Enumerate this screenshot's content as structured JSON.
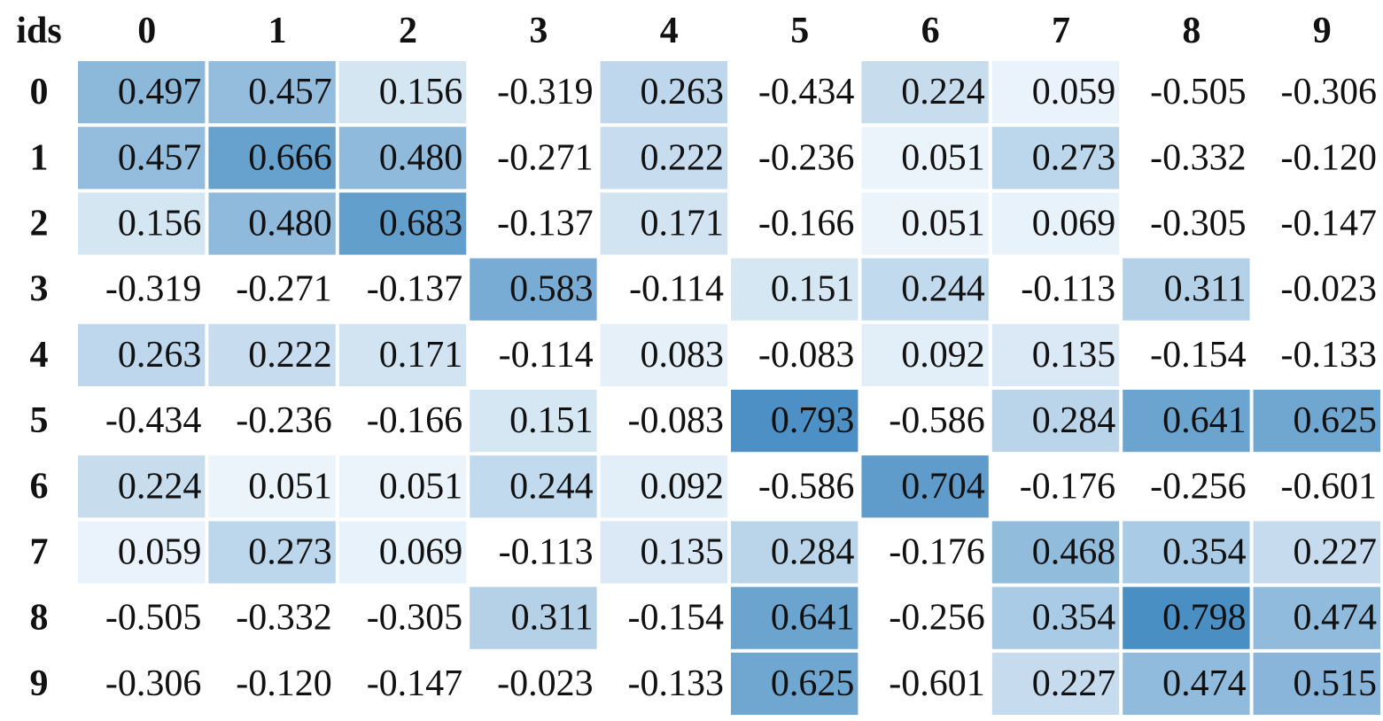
{
  "chart_data": {
    "type": "heatmap",
    "corner_label": "ids",
    "col_labels": [
      "0",
      "1",
      "2",
      "3",
      "4",
      "5",
      "6",
      "7",
      "8",
      "9"
    ],
    "row_labels": [
      "0",
      "1",
      "2",
      "3",
      "4",
      "5",
      "6",
      "7",
      "8",
      "9"
    ],
    "values": [
      [
        "0.497",
        "0.457",
        "0.156",
        "-0.319",
        "0.263",
        "-0.434",
        "0.224",
        "0.059",
        "-0.505",
        "-0.306"
      ],
      [
        "0.457",
        "0.666",
        "0.480",
        "-0.271",
        "0.222",
        "-0.236",
        "0.051",
        "0.273",
        "-0.332",
        "-0.120"
      ],
      [
        "0.156",
        "0.480",
        "0.683",
        "-0.137",
        "0.171",
        "-0.166",
        "0.051",
        "0.069",
        "-0.305",
        "-0.147"
      ],
      [
        "-0.319",
        "-0.271",
        "-0.137",
        "0.583",
        "-0.114",
        "0.151",
        "0.244",
        "-0.113",
        "0.311",
        "-0.023"
      ],
      [
        "0.263",
        "0.222",
        "0.171",
        "-0.114",
        "0.083",
        "-0.083",
        "0.092",
        "0.135",
        "-0.154",
        "-0.133"
      ],
      [
        "-0.434",
        "-0.236",
        "-0.166",
        "0.151",
        "-0.083",
        "0.793",
        "-0.586",
        "0.284",
        "0.641",
        "0.625"
      ],
      [
        "0.224",
        "0.051",
        "0.051",
        "0.244",
        "0.092",
        "-0.586",
        "0.704",
        "-0.176",
        "-0.256",
        "-0.601"
      ],
      [
        "0.059",
        "0.273",
        "0.069",
        "-0.113",
        "0.135",
        "0.284",
        "-0.176",
        "0.468",
        "0.354",
        "0.227"
      ],
      [
        "-0.505",
        "-0.332",
        "-0.305",
        "0.311",
        "-0.154",
        "0.641",
        "-0.256",
        "0.354",
        "0.798",
        "0.474"
      ],
      [
        "-0.306",
        "-0.120",
        "-0.147",
        "-0.023",
        "-0.133",
        "0.625",
        "-0.601",
        "0.227",
        "0.474",
        "0.515"
      ]
    ],
    "color_scale": {
      "low_color": "#f7fbff",
      "high_color": "#4a8fc4",
      "min": 0,
      "max": 0.8,
      "negative_color": "#ffffff"
    }
  }
}
